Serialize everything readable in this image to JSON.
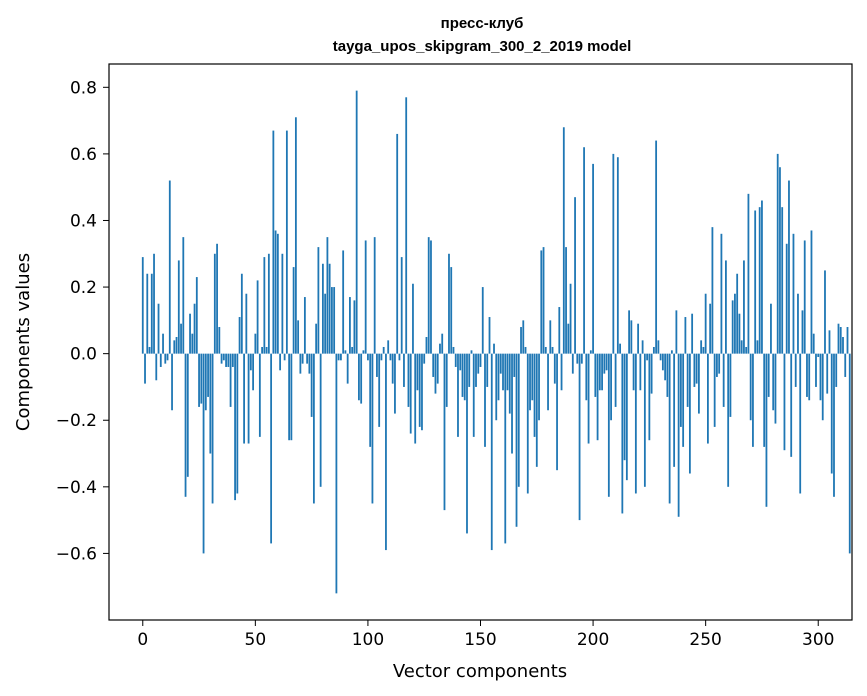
{
  "chart_data": {
    "type": "bar",
    "title": "пресс-клуб",
    "subtitle": "tayga_upos_skipgram_300_2_2019 model",
    "xlabel": "Vector components",
    "ylabel": "Components values",
    "xlim": [
      -15,
      315
    ],
    "ylim": [
      -0.8,
      0.87
    ],
    "xticks": [
      0,
      50,
      100,
      150,
      200,
      250,
      300
    ],
    "xtick_labels": [
      "0",
      "50",
      "100",
      "150",
      "200",
      "250",
      "300"
    ],
    "yticks": [
      -0.6,
      -0.4,
      -0.2,
      0.0,
      0.2,
      0.4,
      0.6,
      0.8
    ],
    "ytick_labels": [
      "−0.6",
      "−0.4",
      "−0.2",
      "0.0",
      "0.2",
      "0.4",
      "0.6",
      "0.8"
    ],
    "grid": false,
    "bar_color": "#1f77b4",
    "series": [
      {
        "x_start": 0,
        "values": [
          0.29,
          -0.09,
          0.24,
          0.02,
          0.24,
          0.3,
          -0.08,
          0.15,
          -0.04,
          0.06,
          -0.03,
          -0.02,
          0.52,
          -0.17,
          0.04,
          0.05,
          0.28,
          0.09,
          0.35,
          -0.43,
          -0.37,
          0.12,
          0.06,
          0.15,
          0.23,
          -0.16,
          -0.15,
          -0.6,
          -0.17,
          -0.13,
          -0.3,
          -0.45,
          0.3,
          0.33,
          0.08,
          -0.03,
          -0.02,
          -0.04,
          -0.04,
          -0.16,
          -0.04,
          -0.44,
          -0.42,
          0.11,
          0.24,
          -0.27,
          0.18,
          -0.27,
          -0.05,
          -0.11,
          0.06,
          0.22,
          -0.25,
          0.02,
          0.29,
          0.02,
          0.3,
          -0.57,
          0.67,
          0.37,
          0.36,
          -0.05,
          0.3,
          -0.02,
          0.67,
          -0.26,
          -0.26,
          0.26,
          0.71,
          0.1,
          -0.06,
          -0.03,
          0.17,
          -0.03,
          -0.06,
          -0.19,
          -0.45,
          0.09,
          0.32,
          -0.4,
          0.27,
          0.18,
          0.35,
          0.27,
          0.2,
          0.2,
          -0.72,
          -0.02,
          -0.02,
          0.31,
          0.01,
          -0.09,
          0.17,
          0.02,
          0.16,
          0.79,
          -0.14,
          -0.15,
          0.01,
          0.34,
          -0.02,
          -0.28,
          -0.45,
          0.35,
          -0.07,
          -0.22,
          -0.02,
          0.02,
          -0.59,
          0.04,
          -0.02,
          -0.09,
          -0.18,
          0.66,
          -0.02,
          0.29,
          -0.1,
          0.77,
          -0.16,
          -0.24,
          0.21,
          -0.27,
          -0.11,
          -0.22,
          -0.23,
          -0.03,
          0.05,
          0.35,
          0.34,
          -0.07,
          -0.12,
          -0.09,
          0.03,
          0.06,
          -0.47,
          -0.16,
          0.3,
          0.26,
          0.02,
          -0.04,
          -0.25,
          -0.05,
          -0.13,
          -0.14,
          -0.54,
          -0.1,
          0.01,
          -0.25,
          -0.1,
          -0.06,
          -0.04,
          0.2,
          -0.28,
          -0.1,
          0.11,
          -0.59,
          0.03,
          -0.2,
          -0.14,
          -0.06,
          -0.11,
          -0.57,
          -0.11,
          -0.18,
          -0.3,
          -0.07,
          -0.52,
          -0.4,
          0.08,
          0.1,
          0.02,
          -0.42,
          -0.17,
          -0.14,
          -0.25,
          -0.34,
          -0.2,
          0.31,
          0.32,
          0.02,
          -0.17,
          0.1,
          0.02,
          -0.09,
          -0.35,
          0.14,
          -0.11,
          0.68,
          0.32,
          0.09,
          0.21,
          -0.06,
          0.47,
          -0.03,
          -0.5,
          -0.03,
          0.62,
          -0.14,
          -0.27,
          0.01,
          0.57,
          -0.13,
          -0.26,
          -0.11,
          -0.11,
          -0.06,
          -0.05,
          -0.43,
          -0.2,
          0.6,
          -0.16,
          0.59,
          0.03,
          -0.48,
          -0.32,
          -0.38,
          0.13,
          0.1,
          -0.11,
          -0.42,
          0.09,
          -0.11,
          0.04,
          -0.4,
          -0.02,
          -0.26,
          -0.12,
          0.02,
          0.64,
          0.04,
          -0.02,
          -0.05,
          -0.08,
          -0.13,
          -0.45,
          0.01,
          -0.34,
          0.13,
          -0.49,
          -0.22,
          -0.28,
          0.11,
          -0.16,
          -0.36,
          0.12,
          -0.1,
          -0.09,
          -0.18,
          0.04,
          0.02,
          0.18,
          -0.27,
          0.15,
          0.38,
          -0.22,
          -0.07,
          -0.06,
          0.36,
          -0.16,
          0.28,
          -0.4,
          -0.19,
          0.16,
          0.18,
          0.24,
          0.12,
          0.04,
          0.28,
          0.02,
          0.48,
          -0.2,
          -0.28,
          0.43,
          0.04,
          0.44,
          0.46,
          -0.28,
          -0.46,
          -0.13,
          0.15,
          -0.17,
          -0.21,
          0.6,
          0.56,
          0.44,
          -0.29,
          0.33,
          0.52,
          -0.31,
          0.36,
          -0.1,
          0.18,
          -0.42,
          0.13,
          0.34,
          -0.13,
          -0.14,
          0.37,
          0.06,
          -0.1,
          -0.01,
          -0.14,
          -0.2,
          0.25,
          -0.12,
          0.07,
          -0.36,
          -0.43,
          -0.1,
          0.09,
          0.08,
          0.05,
          -0.07,
          0.08,
          -0.6
        ]
      }
    ]
  }
}
